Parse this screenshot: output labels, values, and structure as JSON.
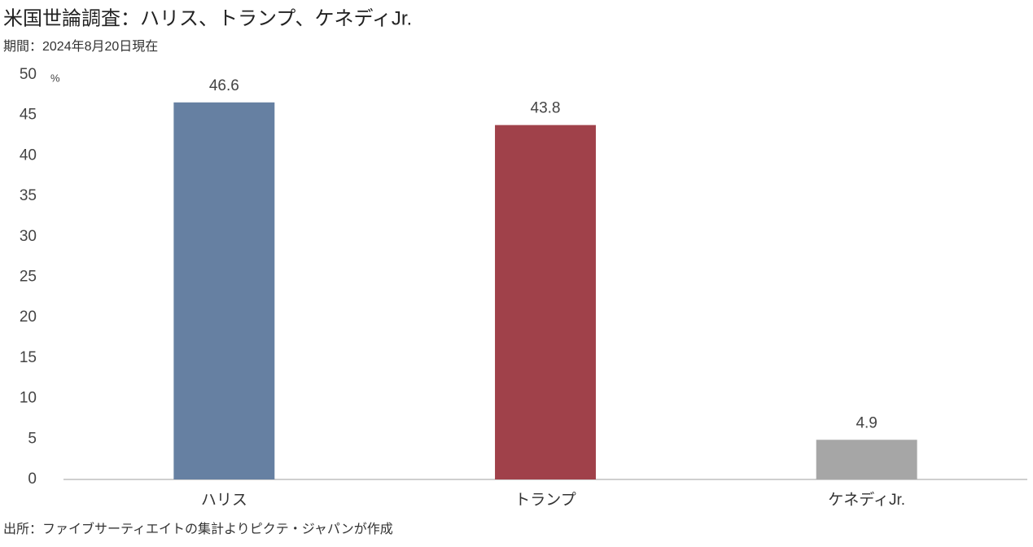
{
  "chart_data": {
    "type": "bar",
    "title": "米国世論調査：ハリス、トランプ、ケネディJr.",
    "subtitle": "期間：2024年8月20日現在",
    "unit": "%",
    "source": "出所：ファイブサーティエイトの集計よりピクテ・ジャパンが作成",
    "categories": [
      "ハリス",
      "トランプ",
      "ケネディJr."
    ],
    "values": [
      46.6,
      43.8,
      4.9
    ],
    "colors": [
      "#6680a2",
      "#a0414a",
      "#a6a6a6"
    ],
    "ylim": [
      0,
      50
    ],
    "yticks": [
      0,
      5,
      10,
      15,
      20,
      25,
      30,
      35,
      40,
      45,
      50
    ],
    "grid": false
  }
}
